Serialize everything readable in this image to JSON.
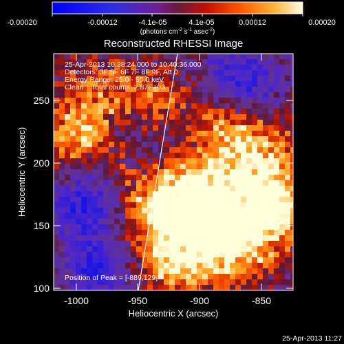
{
  "colorbar": {
    "ticks": [
      "-0.00020",
      "-0.00012",
      "-4.1e-05",
      "4.1e-05",
      "0.00012",
      "0.00020"
    ],
    "units": {
      "base": "(photons cm",
      "exp1": "-2",
      "mid1": " s",
      "exp2": "-1",
      "mid2": " asec",
      "exp3": "-2",
      "end": ")"
    }
  },
  "plot": {
    "title": "Reconstructed RHESSI Image",
    "info": [
      "25-Apr-2013 10:38:24.000 to 10:40:36.000",
      "Detectors: 3F 5F 6F 7F 8F 9F, Att 0",
      "Energy Range: 25.0 - 50.0 keV",
      "Clean    Total counts: 2.87E+03"
    ],
    "peak_text": "Position of Peak = [-889,129]",
    "xlabel": "Heliocentric X (arcsec)",
    "ylabel": "Heliocentric Y (arcsec)",
    "x_ticks": [
      "-1000",
      "-950",
      "-900",
      "-850"
    ],
    "y_ticks": [
      "100",
      "150",
      "200",
      "250"
    ]
  },
  "footer": {
    "timestamp": "25-Apr-2013 11:27"
  },
  "chart_data": {
    "type": "heatmap",
    "title": "Reconstructed RHESSI Image",
    "xlabel": "Heliocentric X (arcsec)",
    "ylabel": "Heliocentric Y (arcsec)",
    "xlim": [
      -1021,
      -829
    ],
    "ylim": [
      97,
      285
    ],
    "colorbar_range": [
      -0.0002,
      0.0002
    ],
    "peak": [
      -889,
      129
    ],
    "limb_line": [
      [
        -955,
        97
      ],
      [
        -905,
        285
      ]
    ]
  }
}
